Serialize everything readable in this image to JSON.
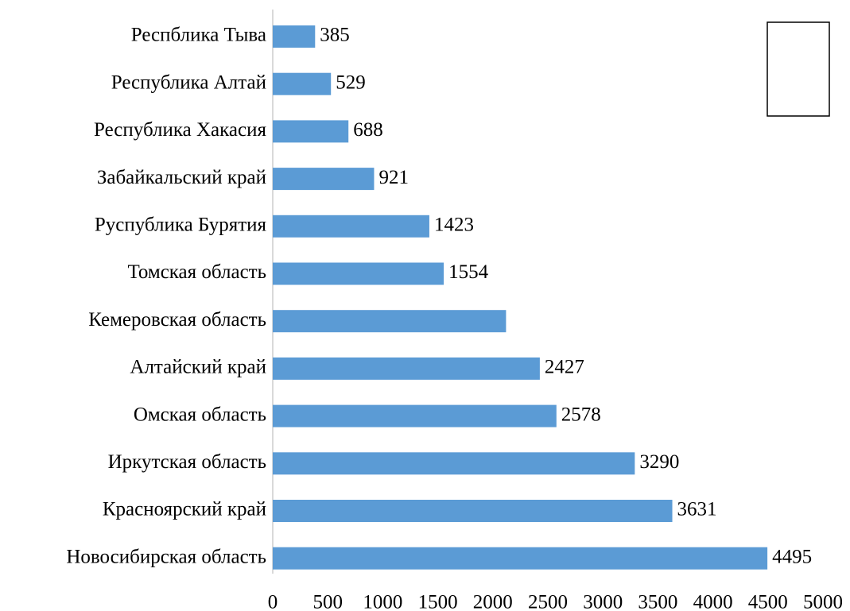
{
  "chart_data": {
    "type": "hbar",
    "categories": [
      "Респблика Тыва",
      "Республика Алтай",
      "Республика Хакасия",
      "Забайкальский край",
      "Руспублика Бурятия",
      "Томская область",
      "Кемеровская область",
      "Алтайский край",
      "Омская область",
      "Иркутская область",
      "Красноярский край",
      "Новосибирская область"
    ],
    "values": [
      385,
      529,
      688,
      921,
      1423,
      1554,
      2120,
      2427,
      2578,
      3290,
      3631,
      4495
    ],
    "value_labels": [
      "385",
      "529",
      "688",
      "921",
      "1423",
      "1554",
      null,
      "2427",
      "2578",
      "3290",
      "3631",
      "4495"
    ],
    "color": "#5b9bd5",
    "xlim": [
      0,
      5000
    ],
    "xticks": [
      0,
      500,
      1000,
      1500,
      2000,
      2500,
      3000,
      3500,
      4000,
      4500,
      5000
    ],
    "grid": false
  }
}
